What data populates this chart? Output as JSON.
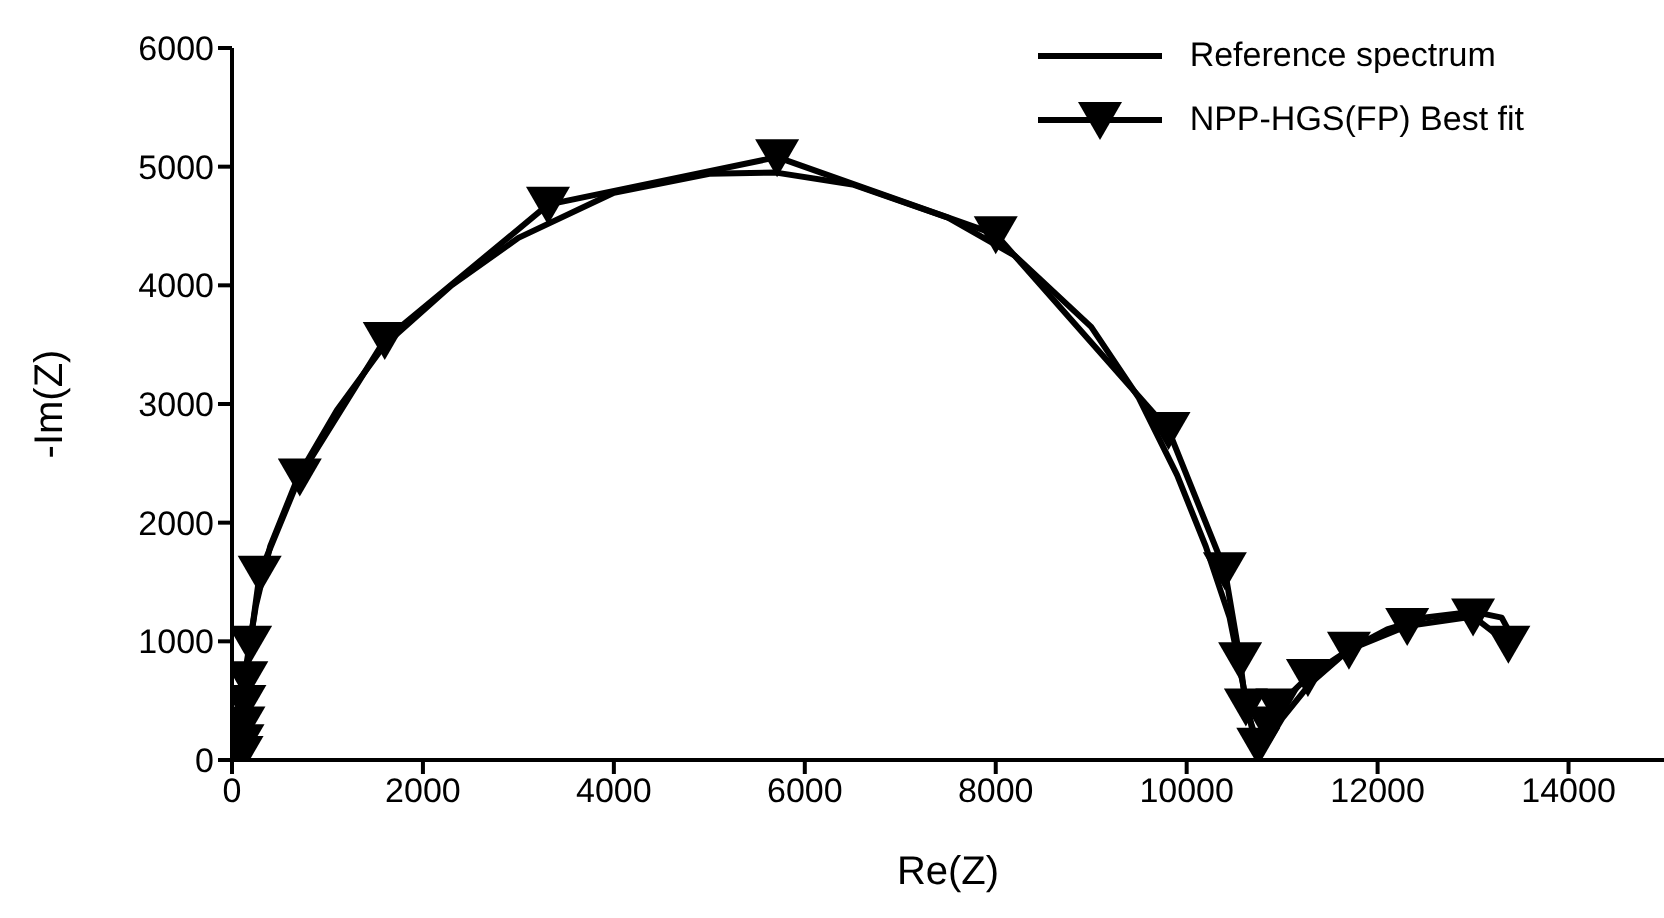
{
  "chart_data": {
    "type": "line",
    "xlabel": "Re(Z)",
    "ylabel": "-Im(Z)",
    "xlim": [
      0,
      15000
    ],
    "xticks": [
      0,
      2000,
      4000,
      6000,
      8000,
      10000,
      12000,
      14000
    ],
    "ylim": [
      0,
      6000
    ],
    "yticks": [
      0,
      1000,
      2000,
      3000,
      4000,
      5000,
      6000
    ],
    "grid": false,
    "legend": "top right",
    "series": [
      {
        "name": "Reference spectrum",
        "color": "#000000",
        "marker": "none",
        "line_style": "solid",
        "x": [
          80,
          100,
          150,
          250,
          400,
          700,
          1100,
          1600,
          2300,
          3000,
          4000,
          5000,
          5700,
          6500,
          7500,
          8200,
          9000,
          9500,
          9900,
          10200,
          10450,
          10600,
          10700,
          10750,
          10850,
          11000,
          11300,
          11700,
          12100,
          12500,
          13000,
          13300,
          13400
        ],
        "values": [
          0,
          300,
          800,
          1300,
          1800,
          2400,
          2950,
          3500,
          4000,
          4400,
          4780,
          4940,
          4950,
          4850,
          4570,
          4250,
          3650,
          3050,
          2400,
          1800,
          1200,
          600,
          200,
          50,
          150,
          350,
          650,
          930,
          1100,
          1200,
          1250,
          1200,
          1050
        ]
      },
      {
        "name": "NPP-HGS(FP) Best fit",
        "color": "#000000",
        "marker": "triangle",
        "line_style": "solid",
        "x": [
          100,
          110,
          120,
          130,
          150,
          190,
          290,
          710,
          1600,
          3310,
          5710,
          8000,
          9810,
          10400,
          10560,
          10620,
          10750,
          10850,
          10950,
          11270,
          11700,
          12310,
          13000,
          13370
        ],
        "values": [
          50,
          150,
          300,
          480,
          680,
          980,
          1570,
          2390,
          3540,
          4680,
          5080,
          4430,
          2780,
          1600,
          840,
          450,
          120,
          300,
          450,
          700,
          930,
          1130,
          1210,
          980
        ]
      }
    ]
  }
}
